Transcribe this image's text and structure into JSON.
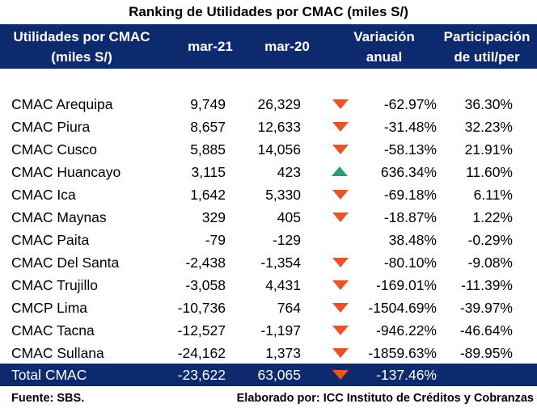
{
  "title": "Ranking de Utilidades por CMAC (miles S/)",
  "colors": {
    "header_bg": "#0E2A6E",
    "down": "#E8542A",
    "up": "#2E9A78"
  },
  "header": {
    "col1_line1": "Utilidades por CMAC",
    "col1_line2": "(miles S/)",
    "col2": "mar-21",
    "col3": "mar-20",
    "col4_line1": "Variación",
    "col4_line2": "anual",
    "col5_line1": "Participación",
    "col5_line2": "de util/per"
  },
  "rows": [
    {
      "name": "CMAC Arequipa",
      "mar21": "9,749",
      "mar20": "26,329",
      "indicator": "down-arrow-icon",
      "var": "-62.97%",
      "part": "36.30%"
    },
    {
      "name": "CMAC Piura",
      "mar21": "8,657",
      "mar20": "12,633",
      "indicator": "down-arrow-icon",
      "var": "-31.48%",
      "part": "32.23%"
    },
    {
      "name": "CMAC Cusco",
      "mar21": "5,885",
      "mar20": "14,056",
      "indicator": "down-arrow-icon",
      "var": "-58.13%",
      "part": "21.91%"
    },
    {
      "name": "CMAC Huancayo",
      "mar21": "3,115",
      "mar20": "423",
      "indicator": "up-arrow-icon",
      "var": "636.34%",
      "part": "11.60%"
    },
    {
      "name": "CMAC Ica",
      "mar21": "1,642",
      "mar20": "5,330",
      "indicator": "down-arrow-icon",
      "var": "-69.18%",
      "part": "6.11%"
    },
    {
      "name": "CMAC Maynas",
      "mar21": "329",
      "mar20": "405",
      "indicator": "down-arrow-icon",
      "var": "-18.87%",
      "part": "1.22%"
    },
    {
      "name": "CMAC Paita",
      "mar21": "-79",
      "mar20": "-129",
      "indicator": "",
      "var": "38.48%",
      "part": "-0.29%"
    },
    {
      "name": "CMAC Del Santa",
      "mar21": "-2,438",
      "mar20": "-1,354",
      "indicator": "down-arrow-icon",
      "var": "-80.10%",
      "part": "-9.08%"
    },
    {
      "name": "CMAC Trujillo",
      "mar21": "-3,058",
      "mar20": "4,431",
      "indicator": "down-arrow-icon",
      "var": "-169.01%",
      "part": "-11.39%"
    },
    {
      "name": "CMCP Lima",
      "mar21": "-10,736",
      "mar20": "764",
      "indicator": "down-arrow-icon",
      "var": "-1504.69%",
      "part": "-39.97%"
    },
    {
      "name": "CMAC Tacna",
      "mar21": "-12,527",
      "mar20": "-1,197",
      "indicator": "down-arrow-icon",
      "var": "-946.22%",
      "part": "-46.64%"
    },
    {
      "name": "CMAC Sullana",
      "mar21": "-24,162",
      "mar20": "1,373",
      "indicator": "down-arrow-icon",
      "var": "-1859.63%",
      "part": "-89.95%"
    }
  ],
  "total": {
    "name": "Total CMAC",
    "mar21": "-23,622",
    "mar20": "63,065",
    "indicator": "down-arrow-icon",
    "var": "-137.46%",
    "part": ""
  },
  "footer": {
    "source": "Fuente: SBS.",
    "author": "Elaborado por: ICC Instituto de Créditos y Cobranzas"
  }
}
